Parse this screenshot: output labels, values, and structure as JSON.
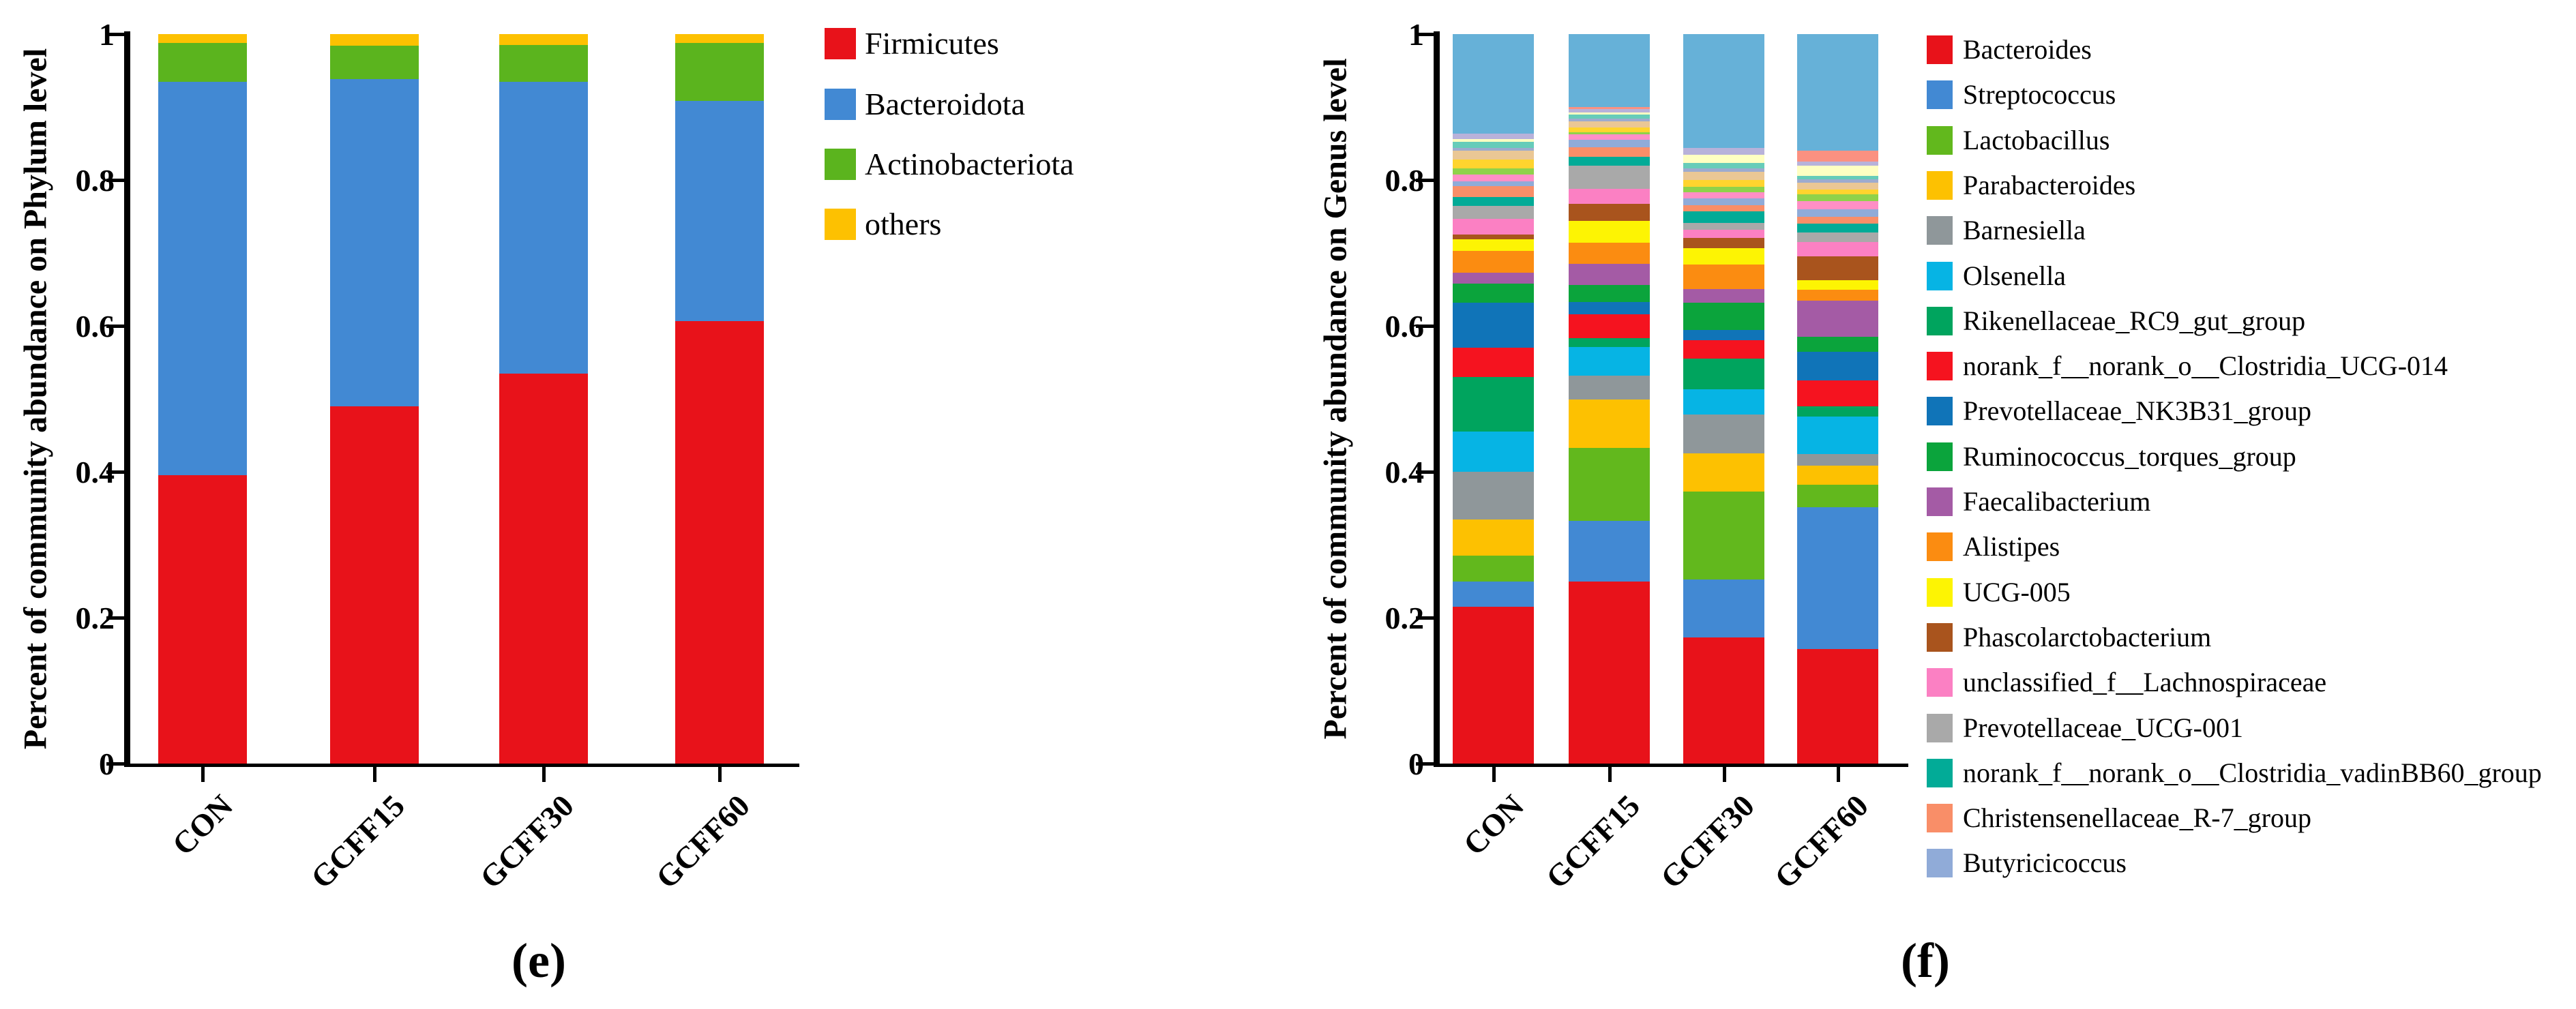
{
  "panels": [
    {
      "panel_id": "e",
      "caption": "(e)",
      "y_axis": {
        "label": "Percent of community abundance on Phylum level",
        "ticks": [
          "0",
          "0.2",
          "0.4",
          "0.6",
          "0.8",
          "1"
        ]
      },
      "x_axis": {
        "categories": [
          "CON",
          "GCFF15",
          "GCFF30",
          "GCFF60"
        ]
      }
    },
    {
      "panel_id": "f",
      "caption": "(f)",
      "y_axis": {
        "label": "Percent of community abundance on Genus level",
        "ticks": [
          "0",
          "0.2",
          "0.4",
          "0.6",
          "0.8",
          "1"
        ]
      },
      "x_axis": {
        "categories": [
          "CON",
          "GCFF15",
          "GCFF30",
          "GCFF60"
        ]
      }
    }
  ],
  "chart_data": [
    {
      "type": "bar",
      "stacked": true,
      "title": "",
      "xlabel": "",
      "ylabel": "Percent of community abundance on Phylum level",
      "ylim": [
        0,
        1
      ],
      "grid": false,
      "legend_position": "right",
      "categories": [
        "CON",
        "GCFF15",
        "GCFF30",
        "GCFF60"
      ],
      "series": [
        {
          "name": "Firmicutes",
          "color": "#e8121a",
          "in_legend": true,
          "values": [
            0.395,
            0.49,
            0.535,
            0.607
          ]
        },
        {
          "name": "Bacteroidota",
          "color": "#4289d3",
          "in_legend": true,
          "values": [
            0.54,
            0.448,
            0.4,
            0.301
          ]
        },
        {
          "name": "Actinobacteriota",
          "color": "#5bb41e",
          "in_legend": true,
          "values": [
            0.053,
            0.046,
            0.05,
            0.08
          ]
        },
        {
          "name": "others",
          "color": "#fdc101",
          "in_legend": true,
          "values": [
            0.012,
            0.016,
            0.015,
            0.012
          ]
        }
      ]
    },
    {
      "type": "bar",
      "stacked": true,
      "title": "",
      "xlabel": "",
      "ylabel": "Percent of community abundance on Genus level",
      "ylim": [
        0,
        1
      ],
      "grid": false,
      "legend_position": "right",
      "categories": [
        "CON",
        "GCFF15",
        "GCFF30",
        "GCFF60"
      ],
      "series": [
        {
          "name": "Bacteroides",
          "color": "#e8121a",
          "in_legend": true,
          "values": [
            0.215,
            0.25,
            0.173,
            0.157
          ]
        },
        {
          "name": "Streptococcus",
          "color": "#4289d3",
          "in_legend": true,
          "values": [
            0.035,
            0.083,
            0.079,
            0.194
          ]
        },
        {
          "name": "Lactobacillus",
          "color": "#62b81d",
          "in_legend": true,
          "values": [
            0.035,
            0.1,
            0.121,
            0.031
          ]
        },
        {
          "name": "Parabacteroides",
          "color": "#fdc101",
          "in_legend": true,
          "values": [
            0.05,
            0.066,
            0.052,
            0.026
          ]
        },
        {
          "name": "Barnesiella",
          "color": "#8f979a",
          "in_legend": true,
          "values": [
            0.065,
            0.033,
            0.054,
            0.016
          ]
        },
        {
          "name": "Olsenella",
          "color": "#06b4e4",
          "in_legend": true,
          "values": [
            0.055,
            0.039,
            0.034,
            0.052
          ]
        },
        {
          "name": "Rikenellaceae_RC9_gut_group",
          "color": "#00a45e",
          "in_legend": true,
          "values": [
            0.075,
            0.012,
            0.042,
            0.014
          ]
        },
        {
          "name": "norank_f__norank_o__Clostridia_UCG-014",
          "color": "#f5131f",
          "in_legend": true,
          "values": [
            0.04,
            0.033,
            0.025,
            0.035
          ]
        },
        {
          "name": "Prevotellaceae_NK3B31_group",
          "color": "#1074b8",
          "in_legend": true,
          "values": [
            0.062,
            0.017,
            0.014,
            0.04
          ]
        },
        {
          "name": "Ruminococcus_torques_group",
          "color": "#0ba43c",
          "in_legend": true,
          "values": [
            0.026,
            0.023,
            0.038,
            0.02
          ]
        },
        {
          "name": "Faecalibacterium",
          "color": "#a45ba5",
          "in_legend": true,
          "values": [
            0.015,
            0.029,
            0.019,
            0.05
          ]
        },
        {
          "name": "Alistipes",
          "color": "#fb8c11",
          "in_legend": true,
          "values": [
            0.03,
            0.029,
            0.033,
            0.015
          ]
        },
        {
          "name": "UCG-005",
          "color": "#fdf403",
          "in_legend": true,
          "values": [
            0.016,
            0.03,
            0.023,
            0.013
          ]
        },
        {
          "name": "Phascolarctobacterium",
          "color": "#a9541d",
          "in_legend": true,
          "values": [
            0.006,
            0.023,
            0.014,
            0.032
          ]
        },
        {
          "name": "unclassified_f__Lachnospiraceae",
          "color": "#fb80c3",
          "in_legend": true,
          "values": [
            0.022,
            0.021,
            0.011,
            0.02
          ]
        },
        {
          "name": "Prevotellaceae_UCG-001",
          "color": "#a9a9a9",
          "in_legend": true,
          "values": [
            0.018,
            0.032,
            0.009,
            0.013
          ]
        },
        {
          "name": "norank_f__norank_o__Clostridia_vadinBB60_group",
          "color": "#02ab97",
          "in_legend": true,
          "values": [
            0.012,
            0.012,
            0.016,
            0.012
          ]
        },
        {
          "name": "Christensenellaceae_R-7_group",
          "color": "#f98e68",
          "in_legend": true,
          "values": [
            0.015,
            0.013,
            0.009,
            0.01
          ]
        },
        {
          "name": "Butyricicoccus",
          "color": "#90abd8",
          "in_legend": true,
          "values": [
            0.006,
            0.01,
            0.009,
            0.01
          ]
        },
        {
          "name": "",
          "color": "#ff8fc5",
          "in_legend": false,
          "values": [
            0.01,
            0.008,
            0.008,
            0.011
          ]
        },
        {
          "name": "",
          "color": "#8fd24a",
          "in_legend": false,
          "values": [
            0.008,
            0.003,
            0.008,
            0.01
          ]
        },
        {
          "name": "",
          "color": "#ffd42e",
          "in_legend": false,
          "values": [
            0.012,
            0.006,
            0.009,
            0.006
          ]
        },
        {
          "name": "",
          "color": "#eac795",
          "in_legend": false,
          "values": [
            0.012,
            0.009,
            0.011,
            0.009
          ]
        },
        {
          "name": "",
          "color": "#9dabce",
          "in_legend": false,
          "values": [
            0.004,
            0.003,
            0.005,
            0.005
          ]
        },
        {
          "name": "",
          "color": "#67ccb9",
          "in_legend": false,
          "values": [
            0.009,
            0.006,
            0.008,
            0.005
          ]
        },
        {
          "name": "",
          "color": "#ffffc2",
          "in_legend": false,
          "values": [
            0.003,
            0.003,
            0.011,
            0.014
          ]
        },
        {
          "name": "",
          "color": "#b8b2da",
          "in_legend": false,
          "values": [
            0.008,
            0.004,
            0.009,
            0.005
          ]
        },
        {
          "name": "",
          "color": "#fb9181",
          "in_legend": false,
          "values": [
            0.0,
            0.003,
            0.0,
            0.015
          ]
        },
        {
          "name": "",
          "color": "#66b1d8",
          "in_legend": false,
          "values": [
            0.136,
            0.1,
            0.156,
            0.16
          ]
        }
      ]
    }
  ]
}
